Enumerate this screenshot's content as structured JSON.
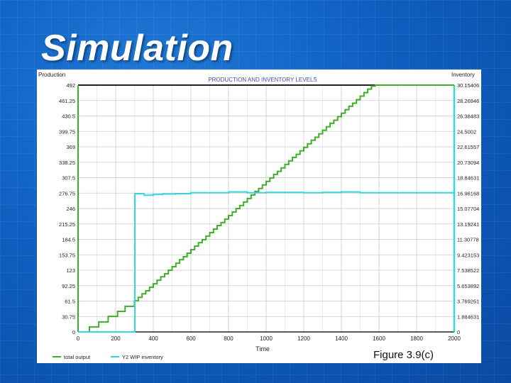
{
  "slide": {
    "title": "Simulation",
    "caption": "Figure 3.9(c)"
  },
  "chart_data": {
    "type": "line",
    "title": "PRODUCTION AND INVENTORY LEVELS",
    "xlabel": "Time",
    "ylabel_left": "Production",
    "ylabel_right": "Inventory",
    "xlim": [
      0,
      2000
    ],
    "x_ticks": [
      "0",
      "200",
      "400",
      "600",
      "800",
      "1000",
      "1200",
      "1400",
      "1600",
      "1800",
      "2000"
    ],
    "ylim_left": [
      0,
      492
    ],
    "y_ticks_left": [
      "0",
      "30.75",
      "61.5",
      "92.25",
      "123",
      "153.75",
      "184.5",
      "215.25",
      "246",
      "276.75",
      "307.5",
      "338.25",
      "369",
      "399.75",
      "430.5",
      "461.25",
      "492"
    ],
    "ylim_right": [
      0,
      30.15406
    ],
    "y_ticks_right": [
      "0",
      "1.884631",
      "3.769261",
      "5.653892",
      "7.538522",
      "9.423153",
      "11.30778",
      "13.19241",
      "15.07704",
      "16.96168",
      "18.84631",
      "20.73094",
      "22.61557",
      "24.5002",
      "26.38483",
      "28.26946",
      "30.15406"
    ],
    "grid": true,
    "legend_position": "bottom-left",
    "series": [
      {
        "name": "total output",
        "axis": "left",
        "color": "#3fae2a",
        "step": true,
        "x": [
          0,
          60,
          110,
          160,
          210,
          250,
          300,
          320,
          340,
          360,
          380,
          400,
          420,
          440,
          460,
          480,
          500,
          520,
          540,
          560,
          580,
          600,
          620,
          640,
          660,
          680,
          700,
          720,
          740,
          760,
          780,
          800,
          820,
          840,
          860,
          880,
          900,
          920,
          940,
          960,
          980,
          1000,
          1020,
          1040,
          1060,
          1080,
          1100,
          1120,
          1140,
          1160,
          1180,
          1200,
          1220,
          1240,
          1260,
          1280,
          1300,
          1320,
          1340,
          1360,
          1380,
          1400,
          1420,
          1440,
          1460,
          1480,
          1500,
          1520,
          1540,
          1560,
          1580,
          1600,
          1620,
          1640,
          1660,
          1680,
          1700,
          1720,
          1740,
          1760,
          1780,
          1800,
          1820,
          1840,
          1860,
          1880,
          1900,
          1920,
          1940,
          1960,
          1980
        ],
        "y": [
          0,
          10,
          20,
          31,
          41,
          51,
          62,
          69,
          76,
          82,
          89,
          96,
          103,
          110,
          116,
          123,
          130,
          137,
          144,
          150,
          157,
          164,
          171,
          178,
          184,
          191,
          198,
          205,
          212,
          218,
          225,
          232,
          239,
          246,
          252,
          259,
          266,
          273,
          280,
          286,
          293,
          300,
          307,
          314,
          320,
          327,
          334,
          341,
          348,
          354,
          361,
          368,
          375,
          382,
          388,
          395,
          402,
          409,
          416,
          422,
          429,
          436,
          443,
          450,
          456,
          463,
          470,
          477,
          484,
          490,
          492,
          492,
          492,
          492,
          492,
          492,
          492,
          492,
          492,
          492,
          492,
          492,
          492,
          492,
          492,
          492,
          492,
          492,
          492,
          492,
          492
        ]
      },
      {
        "name": "Y2 WIP inventory",
        "axis": "right",
        "color": "#35d6dd",
        "step": true,
        "x": [
          0,
          300,
          302,
          350,
          400,
          450,
          520,
          600,
          700,
          800,
          900,
          1000,
          1100,
          1200,
          1300,
          1400,
          1500,
          1600,
          1700,
          1800,
          1900,
          2000
        ],
        "y": [
          0,
          0,
          16.9,
          16.7,
          16.8,
          16.85,
          16.9,
          17.0,
          17.0,
          17.1,
          17.0,
          17.05,
          17.05,
          17.0,
          17.05,
          17.1,
          17.0,
          17.0,
          17.0,
          17.0,
          17.0,
          17.0
        ]
      }
    ]
  }
}
